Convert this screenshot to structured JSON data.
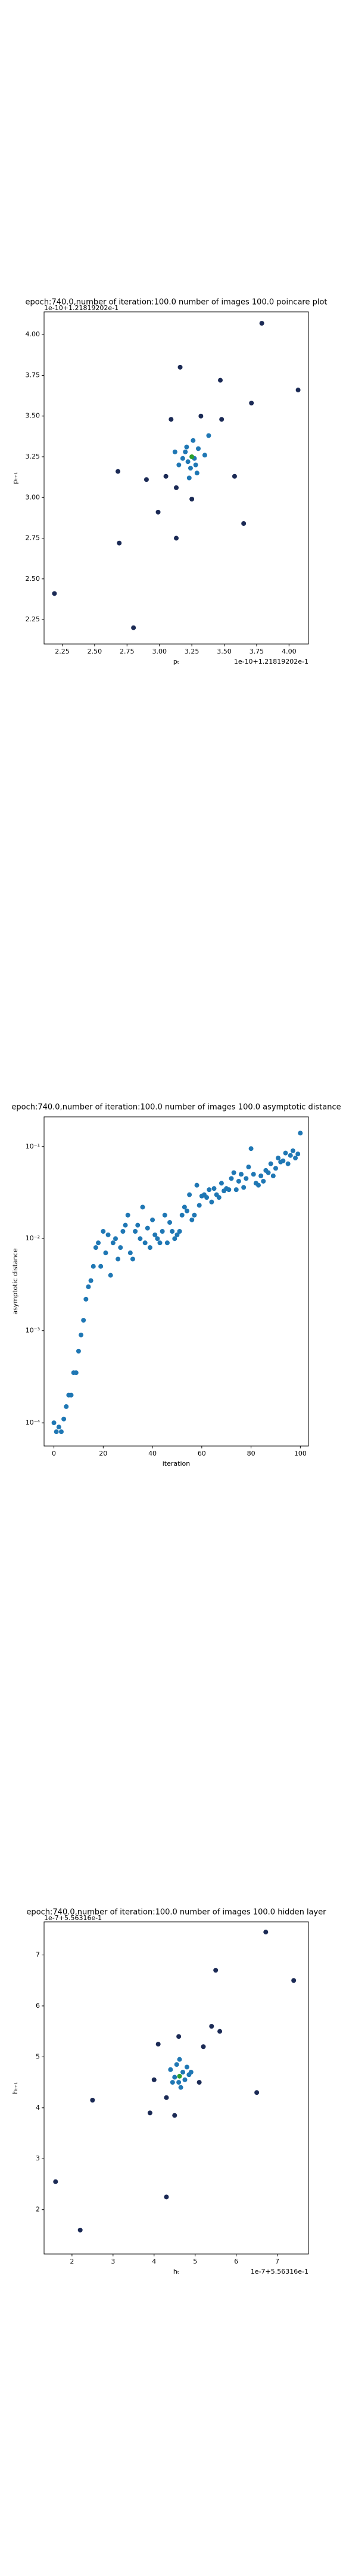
{
  "chart_data": [
    {
      "type": "scatter",
      "title": "epoch:740.0,number of iteration:100.0 number of images 100.0 poincare plot",
      "xlabel": "pₜ",
      "ylabel": "pₜ₊₁",
      "x_offset": "1e-10+1.21819202e-1",
      "y_offset": "1e-10+1.21819202e-1",
      "xlim": [
        2.11,
        4.15
      ],
      "ylim": [
        2.1,
        4.14
      ],
      "xticks": [
        2.25,
        {
          "value": 2.5,
          "label": "2.50"
        },
        2.75,
        {
          "value": 3,
          "label": "3.00"
        },
        3.25,
        {
          "value": 3.5,
          "label": "3.50"
        },
        3.75,
        {
          "value": 4,
          "label": "4.00"
        }
      ],
      "yticks": [
        2.25,
        {
          "value": 2.5,
          "label": "2.50"
        },
        2.75,
        {
          "value": 3,
          "label": "3.00"
        },
        3.25,
        {
          "value": 3.5,
          "label": "3.50"
        },
        3.75,
        {
          "value": 4,
          "label": "4.00"
        }
      ],
      "series": [
        {
          "color": "#1b2a55",
          "x": [
            3.79,
            4.07,
            3.71,
            3.47,
            3.16,
            3.09,
            3.32,
            3.48,
            2.68,
            2.9,
            3.05,
            3.58,
            2.99,
            3.25,
            3.13,
            2.69,
            3.13,
            3.65,
            2.19,
            2.8
          ],
          "y": [
            4.07,
            3.66,
            3.58,
            3.72,
            3.8,
            3.48,
            3.5,
            3.48,
            3.16,
            3.11,
            3.13,
            3.13,
            2.91,
            2.99,
            3.06,
            2.72,
            2.75,
            2.84,
            2.41,
            2.2
          ]
        },
        {
          "color": "#1f77b4",
          "x": [
            3.2,
            3.28,
            3.22,
            3.3,
            3.18,
            3.26,
            3.24,
            3.35,
            3.15,
            3.21,
            3.29,
            3.38,
            3.12,
            3.23,
            3.27
          ],
          "y": [
            3.28,
            3.2,
            3.22,
            3.3,
            3.24,
            3.35,
            3.18,
            3.26,
            3.2,
            3.31,
            3.15,
            3.38,
            3.28,
            3.12,
            3.24
          ]
        },
        {
          "color": "#2ca02c",
          "x": [
            3.25
          ],
          "y": [
            3.25
          ]
        }
      ]
    },
    {
      "type": "scatter",
      "title": "epoch:740.0,number of iteration:100.0  number of images 100.0 asymptotic distance",
      "xlabel": "iteration",
      "ylabel": "asymptotic distance",
      "ylog": true,
      "xlim": [
        -4,
        103.3
      ],
      "ylim": [
        5.6e-05,
        0.21
      ],
      "xticks": [
        0,
        20,
        40,
        60,
        80,
        100
      ],
      "yticks": [
        {
          "value": 0.0001,
          "label": "10⁻⁴"
        },
        {
          "value": 0.001,
          "label": "10⁻³"
        },
        {
          "value": 0.01,
          "label": "10⁻²"
        },
        {
          "value": 0.1,
          "label": "10⁻¹"
        }
      ],
      "series": [
        {
          "color": "#1f77b4",
          "x": [
            0,
            1,
            2,
            3,
            4,
            5,
            6,
            7,
            8,
            9,
            10,
            11,
            12,
            13,
            14,
            15,
            16,
            17,
            18,
            19,
            20,
            21,
            22,
            23,
            24,
            25,
            26,
            27,
            28,
            29,
            30,
            31,
            32,
            33,
            34,
            35,
            36,
            37,
            38,
            39,
            40,
            41,
            42,
            43,
            44,
            45,
            46,
            47,
            48,
            49,
            50,
            51,
            52,
            53,
            54,
            55,
            56,
            57,
            58,
            59,
            60,
            61,
            62,
            63,
            64,
            65,
            66,
            67,
            68,
            69,
            70,
            71,
            72,
            73,
            74,
            75,
            76,
            77,
            78,
            79,
            80,
            81,
            82,
            83,
            84,
            85,
            86,
            87,
            88,
            89,
            90,
            91,
            92,
            93,
            94,
            95,
            96,
            97,
            98,
            99,
            100
          ],
          "y": [
            0.0001,
            8e-05,
            9e-05,
            8e-05,
            0.00011,
            0.00015,
            0.0002,
            0.0002,
            0.00035,
            0.00035,
            0.0006,
            0.0009,
            0.0013,
            0.0022,
            0.003,
            0.0035,
            0.005,
            0.008,
            0.009,
            0.005,
            0.012,
            0.007,
            0.011,
            0.004,
            0.009,
            0.01,
            0.006,
            0.008,
            0.012,
            0.014,
            0.018,
            0.007,
            0.006,
            0.012,
            0.014,
            0.01,
            0.022,
            0.009,
            0.013,
            0.008,
            0.016,
            0.011,
            0.01,
            0.009,
            0.012,
            0.018,
            0.009,
            0.015,
            0.012,
            0.01,
            0.011,
            0.012,
            0.018,
            0.022,
            0.02,
            0.03,
            0.016,
            0.018,
            0.038,
            0.023,
            0.029,
            0.03,
            0.028,
            0.034,
            0.025,
            0.035,
            0.03,
            0.028,
            0.04,
            0.033,
            0.035,
            0.034,
            0.045,
            0.052,
            0.034,
            0.042,
            0.05,
            0.036,
            0.045,
            0.06,
            0.095,
            0.05,
            0.04,
            0.038,
            0.048,
            0.042,
            0.055,
            0.052,
            0.065,
            0.048,
            0.058,
            0.075,
            0.068,
            0.07,
            0.085,
            0.065,
            0.08,
            0.09,
            0.075,
            0.083,
            0.14
          ]
        }
      ]
    },
    {
      "type": "scatter",
      "title": "epoch:740.0,number of iteration:100.0  number of images 100.0 hidden layer",
      "xlabel": "hₜ",
      "ylabel": "hₜ₊₁",
      "x_offset": "1e-7+5.56316e-1",
      "y_offset": "1e-7+5.56316e-1",
      "xlim": [
        1.32,
        7.76
      ],
      "ylim": [
        1.13,
        7.65
      ],
      "xticks": [
        2,
        3,
        4,
        5,
        6,
        7
      ],
      "yticks": [
        2,
        3,
        4,
        5,
        6,
        7
      ],
      "series": [
        {
          "color": "#1b2a55",
          "x": [
            6.72,
            7.4,
            5.5,
            5.6,
            5.4,
            2.5,
            6.5,
            1.6,
            2.2,
            4.3,
            4.1,
            4.6,
            5.2,
            3.9,
            4.5,
            4.3,
            5.1,
            4.0
          ],
          "y": [
            7.45,
            6.5,
            6.7,
            5.5,
            5.6,
            4.15,
            4.3,
            2.55,
            1.6,
            2.25,
            5.25,
            5.4,
            5.2,
            3.9,
            3.85,
            4.2,
            4.5,
            4.55
          ]
        },
        {
          "color": "#1f77b4",
          "x": [
            4.5,
            4.7,
            4.6,
            4.8,
            4.4,
            4.65,
            4.55,
            4.75,
            4.85,
            4.45,
            4.62,
            4.9
          ],
          "y": [
            4.6,
            4.7,
            4.5,
            4.8,
            4.75,
            4.4,
            4.85,
            4.55,
            4.65,
            4.5,
            4.95,
            4.7
          ]
        },
        {
          "color": "#2ca02c",
          "x": [
            4.62
          ],
          "y": [
            4.62
          ]
        }
      ]
    }
  ]
}
